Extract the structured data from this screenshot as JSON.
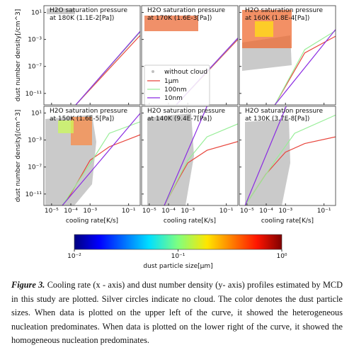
{
  "chart_data": {
    "type": "line",
    "log_x": true,
    "log_y": true,
    "xlabel": "cooling rate[K/s]",
    "ylabel": "dust number density[/cm^3]",
    "xlim": [
      4e-06,
      0.4
    ],
    "xticks": [
      {
        "value": 1e-05,
        "label": "10⁻⁵"
      },
      {
        "value": 0.0001,
        "label": "10⁻⁴"
      },
      {
        "value": 0.001,
        "label": "10⁻³"
      },
      {
        "value": 0.1,
        "label": "10⁻¹"
      }
    ],
    "ylim": [
      2e-13,
      100
    ],
    "yticks": [
      {
        "value": 10,
        "label": "10¹"
      },
      {
        "value": 0.001,
        "label": "10⁻³"
      },
      {
        "value": 1e-07,
        "label": "10⁻⁷"
      },
      {
        "value": 1e-11,
        "label": "10⁻¹¹"
      }
    ],
    "cloud_label": "without cloud",
    "cloud_color": "#c0c0c0",
    "panels": [
      {
        "title": "H2O saturation pressure",
        "subtitle": "at 180K (1.1E-2[Pa])",
        "series": [
          {
            "name": "1μm",
            "color": "#e8453c",
            "x": [
              0.00018,
              0.4
            ],
            "y": [
              2e-13,
              0.004
            ]
          },
          {
            "name": "100nm",
            "color": "#98ee98",
            "x": [
              0.00018,
              0.4
            ],
            "y": [
              2e-13,
              0.012
            ]
          },
          {
            "name": "10nm",
            "color": "#8a2be2",
            "x": [
              0.00018,
              0.4
            ],
            "y": [
              2e-13,
              0.016
            ]
          }
        ]
      },
      {
        "title": "H2O saturation pressure",
        "subtitle": "at 170K (1.6E-3[Pa])",
        "series": [
          {
            "name": "1μm",
            "color": "#e8453c",
            "x": [
              0.00025,
              0.4
            ],
            "y": [
              2e-13,
              0.001
            ]
          },
          {
            "name": "100nm",
            "color": "#98ee98",
            "x": [
              0.00025,
              0.4
            ],
            "y": [
              2e-13,
              0.0014
            ]
          },
          {
            "name": "10nm",
            "color": "#8a2be2",
            "x": [
              0.00025,
              0.4
            ],
            "y": [
              2e-13,
              0.0016
            ]
          }
        ]
      },
      {
        "title": "H2O saturation pressure",
        "subtitle": "at 160K (1.8E-4[Pa])",
        "series": [
          {
            "name": "1μm",
            "color": "#e8453c",
            "x": [
              0.00028,
              0.01,
              0.4
            ],
            "y": [
              2e-13,
              1e-05,
              0.003
            ]
          },
          {
            "name": "100nm",
            "color": "#98ee98",
            "x": [
              0.00028,
              0.01,
              0.4
            ],
            "y": [
              2e-13,
              3e-05,
              0.02
            ]
          },
          {
            "name": "10nm",
            "color": "#8a2be2",
            "x": [
              0.00028,
              0.4
            ],
            "y": [
              2e-13,
              0.03
            ]
          }
        ]
      },
      {
        "title": "H2O saturation pressure",
        "subtitle": "at 150K (1.6E-5[Pa])",
        "series": [
          {
            "name": "1μm",
            "color": "#e8453c",
            "x": [
              3.6e-05,
              0.0001,
              0.001,
              0.01,
              0.4
            ],
            "y": [
              2e-13,
              1e-11,
              1e-06,
              0.0001,
              0.006
            ]
          },
          {
            "name": "100nm",
            "color": "#98ee98",
            "x": [
              3.6e-05,
              0.001,
              0.01,
              0.4
            ],
            "y": [
              2e-13,
              3e-07,
              0.01,
              0.5
            ]
          },
          {
            "name": "10nm",
            "color": "#8a2be2",
            "x": [
              3.6e-05,
              0.4
            ],
            "y": [
              2e-13,
              9
            ]
          }
        ]
      },
      {
        "title": "H2O saturation pressure",
        "subtitle": "at 140K (9.4E-7[Pa])",
        "series": [
          {
            "name": "1μm",
            "color": "#e8453c",
            "x": [
              6e-05,
              0.0003,
              0.001,
              0.01,
              0.4
            ],
            "y": [
              2e-13,
              1e-09,
              4e-07,
              3e-05,
              0.0006
            ]
          },
          {
            "name": "100nm",
            "color": "#98ee98",
            "x": [
              6e-05,
              0.001,
              0.01,
              0.4
            ],
            "y": [
              2e-13,
              1e-06,
              0.003,
              0.25
            ]
          },
          {
            "name": "10nm",
            "color": "#8a2be2",
            "x": [
              6e-05,
              0.01
            ],
            "y": [
              2e-13,
              100
            ]
          }
        ]
      },
      {
        "title": "H2O saturation pressure",
        "subtitle": "at 130K (3.7E-8[Pa])",
        "series": [
          {
            "name": "1μm",
            "color": "#e8453c",
            "x": [
              8e-06,
              0.0001,
              0.001,
              0.01,
              0.4
            ],
            "y": [
              2e-13,
              1e-08,
              1.6e-05,
              0.0003,
              0.003
            ]
          },
          {
            "name": "100nm",
            "color": "#98ee98",
            "x": [
              8e-06,
              0.0003,
              0.003,
              0.4
            ],
            "y": [
              2e-13,
              1e-06,
              0.01,
              5
            ]
          },
          {
            "name": "10nm",
            "color": "#8a2be2",
            "x": [
              8e-06,
              0.0011
            ],
            "y": [
              2e-13,
              100
            ]
          }
        ]
      }
    ],
    "colorbar": {
      "label": "dust particle size[μm]",
      "colormap": "jet",
      "lim": [
        0.01,
        1
      ],
      "ticks": [
        {
          "value": 0.01,
          "label": "10⁻²"
        },
        {
          "value": 0.1,
          "label": "10⁻¹"
        },
        {
          "value": 1,
          "label": "10⁰"
        }
      ]
    }
  },
  "caption": {
    "label": "Figure 3.",
    "text": "Cooling rate (x - axis) and dust number density (y- axis) profiles estimated by MCD in this study are plotted. Silver circles indicate no cloud. The color denotes the dust particle sizes. When data is plotted on the upper left of the curve, it showed the heterogeneous nucleation predominates. When data is plotted on the lower right of the curve, it showed the homogeneous nucleation predominates."
  }
}
